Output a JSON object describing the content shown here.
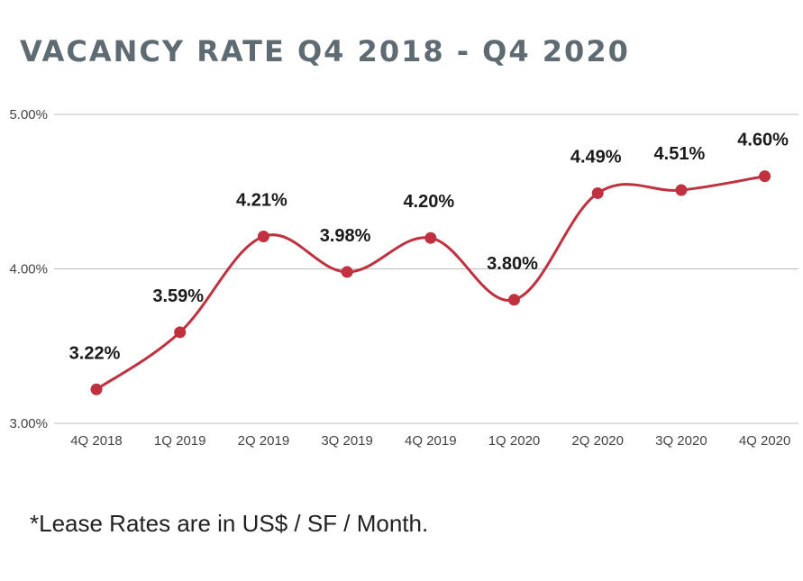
{
  "title": "VACANCY RATE Q4 2018 - Q4 2020",
  "footnote": "*Lease Rates are in US$ / SF / Month.",
  "chart_data": {
    "type": "line",
    "title": "VACANCY RATE Q4 2018 - Q4 2020",
    "xlabel": "",
    "ylabel": "",
    "categories": [
      "4Q 2018",
      "1Q 2019",
      "2Q 2019",
      "3Q 2019",
      "4Q 2019",
      "1Q 2020",
      "2Q 2020",
      "3Q 2020",
      "4Q 2020"
    ],
    "series": [
      {
        "values": [
          3.22,
          3.59,
          4.21,
          3.98,
          4.2,
          3.8,
          4.49,
          4.51,
          4.6
        ],
        "data_labels": [
          "3.22%",
          "3.59%",
          "4.21%",
          "3.98%",
          "4.20%",
          "3.80%",
          "4.49%",
          "4.51%",
          "4.60%"
        ],
        "color": "#c0303f"
      }
    ],
    "ylim": [
      3.0,
      5.0
    ],
    "yticks": [
      3.0,
      4.0,
      5.0
    ],
    "ytick_labels": [
      "3.00%",
      "4.00%",
      "5.00%"
    ],
    "grid": true,
    "smooth": true,
    "legend": "none"
  }
}
